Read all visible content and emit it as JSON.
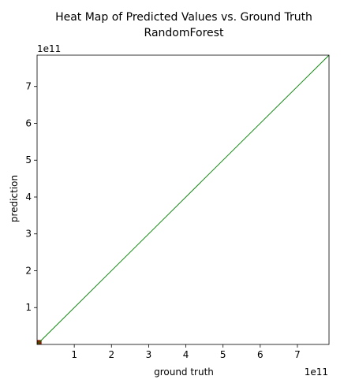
{
  "chart_data": {
    "type": "heatmap",
    "title": "Heat Map of Predicted Values vs. Ground Truth",
    "subtitle": "RandomForest",
    "xlabel": "ground truth",
    "ylabel": "prediction",
    "x_offset_label": "1e11",
    "y_offset_label": "1e11",
    "xlim": [
      0,
      7.85
    ],
    "ylim": [
      0,
      7.85
    ],
    "scale": 100000000000.0,
    "xticks": [
      1,
      2,
      3,
      4,
      5,
      6,
      7
    ],
    "yticks": [
      1,
      2,
      3,
      4,
      5,
      6,
      7
    ],
    "grid": false,
    "reference_line": {
      "from": [
        0,
        0
      ],
      "to": [
        7.85,
        7.85
      ],
      "color": "#008000"
    },
    "cells": [
      {
        "x0": 0.0,
        "x1": 0.12,
        "y0": 0.0,
        "y1": 0.12,
        "color": "#8b1a00"
      }
    ],
    "colors": {
      "background": "#ffffff",
      "axis": "#000000"
    }
  }
}
